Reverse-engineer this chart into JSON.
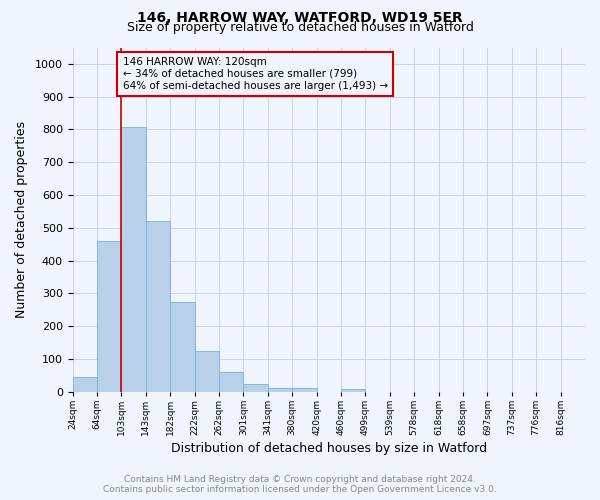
{
  "title1": "146, HARROW WAY, WATFORD, WD19 5ER",
  "title2": "Size of property relative to detached houses in Watford",
  "xlabel": "Distribution of detached houses by size in Watford",
  "ylabel": "Number of detached properties",
  "bar_color": "#b8d0ea",
  "bar_edge_color": "#7aafd4",
  "grid_color": "#c8d4e8",
  "annotation_line_color": "#cc0000",
  "annotation_box_color": "#cc0000",
  "annotation_text": "146 HARROW WAY: 120sqm\n← 34% of detached houses are smaller (799)\n64% of semi-detached houses are larger (1,493) →",
  "subject_bar_index": 2,
  "categories": [
    "24sqm",
    "64sqm",
    "103sqm",
    "143sqm",
    "182sqm",
    "222sqm",
    "262sqm",
    "301sqm",
    "341sqm",
    "380sqm",
    "420sqm",
    "460sqm",
    "499sqm",
    "539sqm",
    "578sqm",
    "618sqm",
    "658sqm",
    "697sqm",
    "737sqm",
    "776sqm",
    "816sqm"
  ],
  "values": [
    46,
    460,
    808,
    520,
    275,
    125,
    60,
    25,
    12,
    12,
    0,
    8,
    0,
    0,
    0,
    0,
    0,
    0,
    0,
    0,
    0
  ],
  "ylim": [
    0,
    1050
  ],
  "yticks": [
    0,
    100,
    200,
    300,
    400,
    500,
    600,
    700,
    800,
    900,
    1000
  ],
  "footer_text": "Contains HM Land Registry data © Crown copyright and database right 2024.\nContains public sector information licensed under the Open Government Licence v3.0.",
  "background_color": "#f0f4fc",
  "title_fontsize": 10,
  "subtitle_fontsize": 9,
  "footer_fontsize": 6.5,
  "footer_color": "#888888"
}
